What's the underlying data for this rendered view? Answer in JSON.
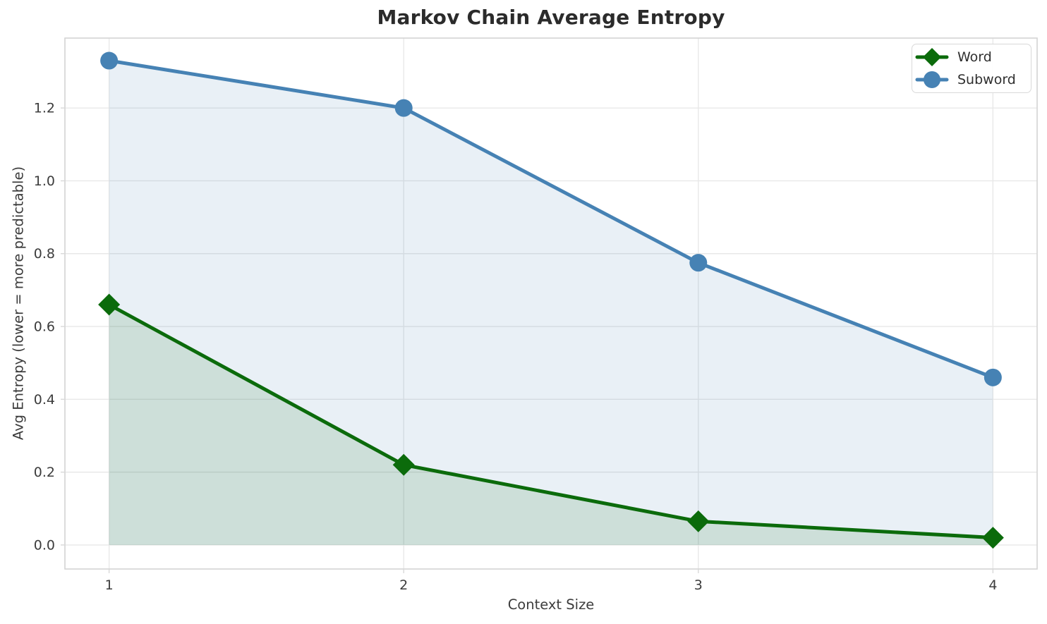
{
  "chart_data": {
    "type": "line",
    "title": "Markov Chain Average Entropy",
    "xlabel": "Context Size",
    "ylabel": "Avg Entropy (lower = more predictable)",
    "x": [
      1,
      2,
      3,
      4
    ],
    "series": [
      {
        "name": "Word",
        "values": [
          0.66,
          0.22,
          0.065,
          0.02
        ],
        "color": "#0b6b0b",
        "marker": "diamond",
        "fill_to_zero": true,
        "fill_opacity": 0.12
      },
      {
        "name": "Subword",
        "values": [
          1.33,
          1.2,
          0.775,
          0.46
        ],
        "color": "#4682b4",
        "marker": "circle",
        "fill_to_zero": true,
        "fill_opacity": 0.12
      }
    ],
    "x_ticks": [
      "1",
      "2",
      "3",
      "4"
    ],
    "y_ticks": [
      "0.0",
      "0.2",
      "0.4",
      "0.6",
      "0.8",
      "1.0",
      "1.2"
    ],
    "xlim": [
      0.85,
      4.15
    ],
    "ylim": [
      -0.066,
      1.392
    ],
    "grid": true,
    "legend_position": "upper right",
    "styles": {
      "grid_color": "#e8e8e8",
      "spine_color": "#d4d4d4",
      "tick_color": "#d8d8d8",
      "tick_label_color": "#3c3c3c",
      "line_width": 5
    }
  }
}
